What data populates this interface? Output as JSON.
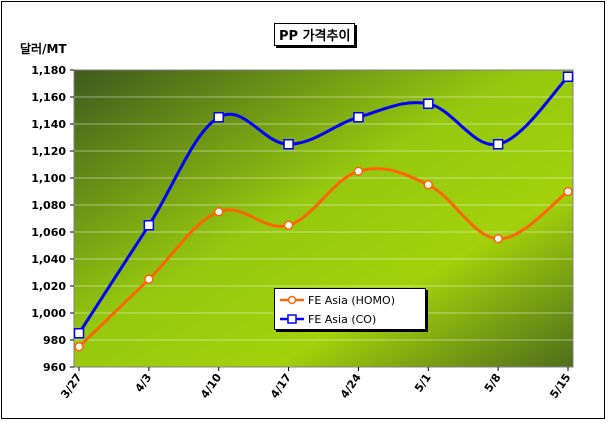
{
  "chart_data": {
    "type": "line",
    "title": "PP 가격추이",
    "ylabel": "달러/MT",
    "xlabel": "",
    "categories": [
      "3/27",
      "4/3",
      "4/10",
      "4/17",
      "4/24",
      "5/1",
      "5/8",
      "5/15"
    ],
    "ylim": [
      960,
      1180
    ],
    "ytick_step": 20,
    "y_ticks": [
      "960",
      "980",
      "1,000",
      "1,020",
      "1,040",
      "1,060",
      "1,080",
      "1,100",
      "1,120",
      "1,140",
      "1,160",
      "1,180"
    ],
    "grid": true,
    "legend_position": "bottom-center",
    "series": [
      {
        "name": "FE Asia (HOMO)",
        "color": "#ff6600",
        "marker": "circle",
        "values": [
          975,
          1025,
          1075,
          1065,
          1105,
          1095,
          1055,
          1090
        ]
      },
      {
        "name": "FE Asia (CO)",
        "color": "#0000ff",
        "marker": "square",
        "values": [
          985,
          1065,
          1145,
          1125,
          1145,
          1155,
          1125,
          1175
        ]
      }
    ]
  }
}
